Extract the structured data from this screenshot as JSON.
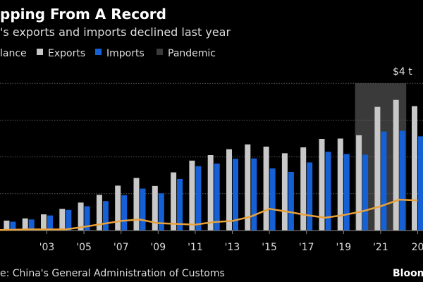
{
  "header": {
    "title": "pping From A Record",
    "subtitle": "'s exports and imports declined last year"
  },
  "legend": [
    {
      "label": "lance",
      "color": "#e8a13a"
    },
    {
      "label": "Exports",
      "color": "#c8c8c8"
    },
    {
      "label": "Imports",
      "color": "#1560d4"
    },
    {
      "label": "Pandemic",
      "color": "#3a3a3a"
    }
  ],
  "footer": {
    "source": "e: China's General Administration of Customs",
    "brand": "Bloom"
  },
  "chart_data": {
    "type": "bar",
    "y_unit_label": "$4 t",
    "ylim": [
      0,
      4
    ],
    "y_gridlines": [
      1,
      2,
      3,
      4
    ],
    "grid": true,
    "categories": [
      2001,
      2002,
      2003,
      2004,
      2005,
      2006,
      2007,
      2008,
      2009,
      2010,
      2011,
      2012,
      2013,
      2014,
      2015,
      2016,
      2017,
      2018,
      2019,
      2020,
      2021,
      2022,
      2023
    ],
    "x_tick_labels": [
      {
        "year": 2003,
        "label": "'03"
      },
      {
        "year": 2005,
        "label": "'05"
      },
      {
        "year": 2007,
        "label": "'07"
      },
      {
        "year": 2009,
        "label": "'09"
      },
      {
        "year": 2011,
        "label": "'11"
      },
      {
        "year": 2013,
        "label": "'13"
      },
      {
        "year": 2015,
        "label": "'15"
      },
      {
        "year": 2017,
        "label": "'17"
      },
      {
        "year": 2019,
        "label": "'19"
      },
      {
        "year": 2021,
        "label": "'21"
      },
      {
        "year": 2023,
        "label": "20"
      }
    ],
    "shaded_region": {
      "label": "Pandemic",
      "from": 2020,
      "to": 2022,
      "color": "#3a3a3a"
    },
    "series": [
      {
        "name": "Exports",
        "type": "bar",
        "color": "#c8c8c8",
        "values": [
          0.27,
          0.33,
          0.44,
          0.59,
          0.76,
          0.97,
          1.22,
          1.43,
          1.21,
          1.58,
          1.9,
          2.05,
          2.21,
          2.34,
          2.28,
          2.1,
          2.26,
          2.49,
          2.5,
          2.59,
          3.36,
          3.55,
          3.38
        ]
      },
      {
        "name": "Imports",
        "type": "bar",
        "color": "#1560d4",
        "values": [
          0.24,
          0.3,
          0.41,
          0.56,
          0.66,
          0.8,
          0.96,
          1.14,
          1.01,
          1.4,
          1.75,
          1.82,
          1.95,
          1.96,
          1.69,
          1.59,
          1.85,
          2.14,
          2.08,
          2.06,
          2.69,
          2.71,
          2.56
        ]
      },
      {
        "name": "Balance",
        "type": "line",
        "color": "#e8a13a",
        "values": [
          0.02,
          0.03,
          0.03,
          0.03,
          0.1,
          0.18,
          0.26,
          0.3,
          0.2,
          0.18,
          0.16,
          0.23,
          0.26,
          0.38,
          0.59,
          0.51,
          0.42,
          0.35,
          0.42,
          0.52,
          0.66,
          0.84,
          0.82
        ]
      }
    ]
  }
}
